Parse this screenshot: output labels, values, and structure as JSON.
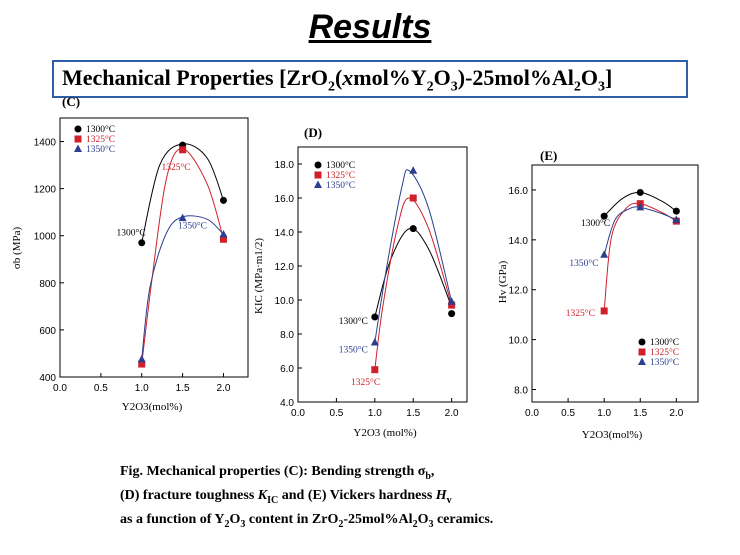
{
  "title": "Results",
  "subtitle": {
    "pre": "Mechanical Properties [ZrO",
    "sub1": "2",
    "mid1": "(",
    "x": "x",
    "mid2": "mol%Y",
    "sub2": "2",
    "mid3": "O",
    "sub3": "3",
    "post": ")-25mol%Al",
    "sub4": "2",
    "mid4": "O",
    "sub5": "3",
    "end": "]"
  },
  "caption": {
    "line1a": "Fig. Mechanical properties (C): Bending strength σ",
    "line1sub": "b",
    "line1b": ",",
    "line2a": "(D) fracture toughness ",
    "line2k": "K",
    "line2sub": "IC",
    "line2b": " and (E) Vickers hardness ",
    "line2h": "H",
    "line2hsub": "v",
    "line3a": "as a function of Y",
    "line3s1": "2",
    "line3b": "O",
    "line3s2": "3",
    "line3c": " content in ZrO",
    "line3s3": "2",
    "line3d": "-25mol%Al",
    "line3s4": "2",
    "line3e": "O",
    "line3s5": "3",
    "line3f": " ceramics."
  },
  "colors": {
    "1300": "#000000",
    "1325": "#d0202a",
    "1350": "#2b3f8f"
  },
  "chart_data": [
    {
      "id": "C",
      "panel_label": "(C)",
      "type": "scatter",
      "ylabel": "σb (MPa)",
      "xlabel": "Y2O3(mol%)",
      "xlim": [
        0,
        2.3
      ],
      "ylim": [
        400,
        1500
      ],
      "xticks": [
        "0.0",
        "0.5",
        "1.0",
        "1.5",
        "2.0"
      ],
      "yticks": [
        "400",
        "600",
        "800",
        "1000",
        "1200",
        "1400"
      ],
      "legend": [
        "1300°C",
        "1325°C",
        "1350°C"
      ],
      "x": [
        1.0,
        1.5,
        2.0
      ],
      "series": [
        {
          "name": "1300°C",
          "marker": "circle",
          "values": [
            970,
            1385,
            1150
          ],
          "curve": [
            [
              1.0,
              970
            ],
            [
              1.22,
              1300
            ],
            [
              1.5,
              1390
            ],
            [
              1.8,
              1330
            ],
            [
              2.0,
              1150
            ]
          ]
        },
        {
          "name": "1325°C",
          "marker": "square",
          "values": [
            455,
            1365,
            985
          ],
          "curve": [
            [
              1.0,
              455
            ],
            [
              1.12,
              800
            ],
            [
              1.3,
              1240
            ],
            [
              1.5,
              1370
            ],
            [
              1.8,
              1220
            ],
            [
              2.0,
              985
            ]
          ]
        },
        {
          "name": "1350°C",
          "marker": "triangle",
          "values": [
            475,
            1075,
            1005
          ],
          "curve": [
            [
              1.0,
              475
            ],
            [
              1.1,
              780
            ],
            [
              1.3,
              1010
            ],
            [
              1.5,
              1080
            ],
            [
              1.8,
              1070
            ],
            [
              2.0,
              1005
            ]
          ]
        }
      ],
      "annotations": [
        {
          "text": "1300°C",
          "x": 0.87,
          "y": 1000,
          "series": "1300"
        },
        {
          "text": "1325°C",
          "x": 1.42,
          "y": 1280,
          "series": "1325"
        },
        {
          "text": "1350°C",
          "x": 1.62,
          "y": 1030,
          "series": "1350"
        }
      ]
    },
    {
      "id": "D",
      "panel_label": "(D)",
      "type": "scatter",
      "ylabel": "KIC (MPa·m1/2)",
      "xlabel": "Y2O3 (mol%)",
      "xlim": [
        0,
        2.2
      ],
      "ylim": [
        4,
        19
      ],
      "xticks": [
        "0.0",
        "0.5",
        "1.0",
        "1.5",
        "2.0"
      ],
      "yticks": [
        "4.0",
        "6.0",
        "8.0",
        "10.0",
        "12.0",
        "14.0",
        "16.0",
        "18.0"
      ],
      "legend": [
        "1300°C",
        "1325°C",
        "1350°C"
      ],
      "x": [
        1.0,
        1.5,
        2.0
      ],
      "series": [
        {
          "name": "1300°C",
          "marker": "circle",
          "values": [
            9.0,
            14.2,
            9.2
          ],
          "curve": [
            [
              1.0,
              9.0
            ],
            [
              1.2,
              12.3
            ],
            [
              1.45,
              14.2
            ],
            [
              1.7,
              13.0
            ],
            [
              2.0,
              9.6
            ]
          ]
        },
        {
          "name": "1325°C",
          "marker": "square",
          "values": [
            5.9,
            16.0,
            9.7
          ],
          "curve": [
            [
              1.0,
              5.9
            ],
            [
              1.1,
              9.5
            ],
            [
              1.3,
              14.4
            ],
            [
              1.45,
              16.0
            ],
            [
              1.7,
              14.2
            ],
            [
              2.0,
              9.7
            ]
          ]
        },
        {
          "name": "1350°C",
          "marker": "triangle",
          "values": [
            7.5,
            17.6,
            9.9
          ],
          "curve": [
            [
              1.0,
              7.5
            ],
            [
              1.15,
              11.8
            ],
            [
              1.35,
              16.6
            ],
            [
              1.45,
              17.6
            ],
            [
              1.7,
              15.4
            ],
            [
              2.0,
              9.9
            ]
          ]
        }
      ],
      "annotations": [
        {
          "text": "1300°C",
          "x": 0.72,
          "y": 8.6,
          "series": "1300"
        },
        {
          "text": "1350°C",
          "x": 0.72,
          "y": 6.9,
          "series": "1350"
        },
        {
          "text": "1325°C",
          "x": 0.88,
          "y": 5.0,
          "series": "1325"
        }
      ]
    },
    {
      "id": "E",
      "panel_label": "(E)",
      "type": "scatter",
      "ylabel": "Hv (GPa)",
      "xlabel": "Y2O3(mol%)",
      "xlim": [
        0,
        2.3
      ],
      "ylim": [
        7.5,
        17
      ],
      "xticks": [
        "0.0",
        "0.5",
        "1.0",
        "1.5",
        "2.0"
      ],
      "yticks": [
        "8.0",
        "10.0",
        "12.0",
        "14.0",
        "16.0"
      ],
      "legend": [
        "1300°C",
        "1325°C",
        "1350°C"
      ],
      "x": [
        1.0,
        1.5,
        2.0
      ],
      "series": [
        {
          "name": "1300°C",
          "marker": "circle",
          "values": [
            14.95,
            15.9,
            15.15
          ],
          "curve": [
            [
              1.0,
              14.95
            ],
            [
              1.25,
              15.65
            ],
            [
              1.5,
              15.9
            ],
            [
              1.8,
              15.55
            ],
            [
              2.0,
              15.15
            ]
          ]
        },
        {
          "name": "1325°C",
          "marker": "square",
          "values": [
            11.15,
            15.45,
            14.75
          ],
          "curve": [
            [
              1.0,
              11.15
            ],
            [
              1.1,
              14.1
            ],
            [
              1.3,
              15.25
            ],
            [
              1.5,
              15.45
            ],
            [
              1.8,
              15.1
            ],
            [
              2.0,
              14.75
            ]
          ]
        },
        {
          "name": "1350°C",
          "marker": "triangle",
          "values": [
            13.4,
            15.3,
            14.8
          ],
          "curve": [
            [
              1.0,
              13.4
            ],
            [
              1.15,
              14.8
            ],
            [
              1.35,
              15.25
            ],
            [
              1.5,
              15.3
            ],
            [
              1.8,
              15.05
            ],
            [
              2.0,
              14.8
            ]
          ]
        }
      ],
      "annotations": [
        {
          "text": "1300°C",
          "x": 0.88,
          "y": 14.55,
          "series": "1300"
        },
        {
          "text": "1350°C",
          "x": 0.72,
          "y": 12.95,
          "series": "1350"
        },
        {
          "text": "1325°C",
          "x": 0.67,
          "y": 10.95,
          "series": "1325"
        }
      ]
    }
  ]
}
